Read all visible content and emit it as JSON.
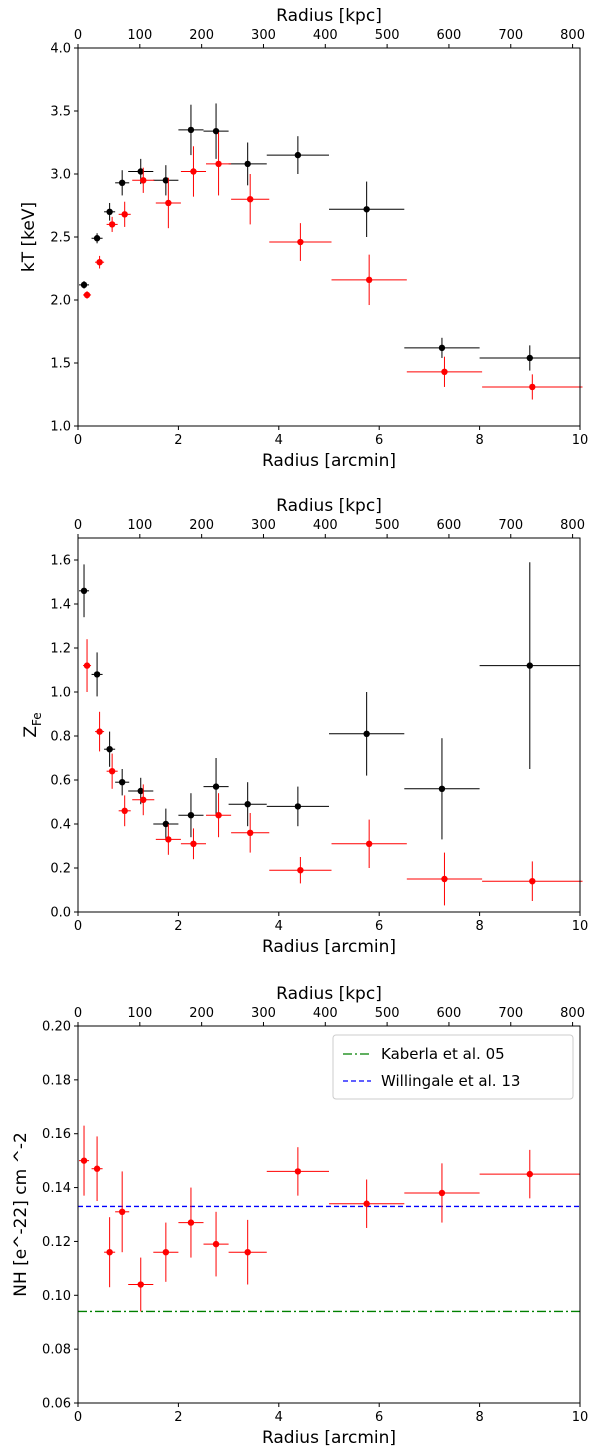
{
  "chart_data": [
    {
      "type": "scatter",
      "xlabel": "Radius [arcmin]",
      "x2label": "Radius [kpc]",
      "ylabel": "kT [keV]",
      "xlim": [
        0,
        10
      ],
      "x2lim": [
        0,
        812
      ],
      "ylim": [
        1.0,
        4.0
      ],
      "xticks": [
        0,
        2,
        4,
        6,
        8,
        10
      ],
      "x2ticks": [
        0,
        100,
        200,
        300,
        400,
        500,
        600,
        700,
        800
      ],
      "yticks": [
        1.0,
        1.5,
        2.0,
        2.5,
        3.0,
        3.5,
        4.0
      ],
      "ytick_decimals": 1,
      "grid": false,
      "series": [
        {
          "color": "#000000",
          "points": [
            {
              "x": 0.12,
              "xerr": 0.1,
              "y": 2.12,
              "yerr": 0.03
            },
            {
              "x": 0.38,
              "xerr": 0.11,
              "y": 2.49,
              "yerr": 0.04
            },
            {
              "x": 0.63,
              "xerr": 0.11,
              "y": 2.7,
              "yerr": 0.07
            },
            {
              "x": 0.88,
              "xerr": 0.14,
              "y": 2.93,
              "yerr": 0.1
            },
            {
              "x": 1.25,
              "xerr": 0.25,
              "y": 3.02,
              "yerr": 0.1
            },
            {
              "x": 1.75,
              "xerr": 0.25,
              "y": 2.95,
              "yerr": 0.12
            },
            {
              "x": 2.25,
              "xerr": 0.25,
              "y": 3.35,
              "yerr": 0.2
            },
            {
              "x": 2.75,
              "xerr": 0.25,
              "y": 3.34,
              "yerr": 0.22
            },
            {
              "x": 3.38,
              "xerr": 0.38,
              "y": 3.08,
              "yerr": 0.17
            },
            {
              "x": 4.38,
              "xerr": 0.62,
              "y": 3.15,
              "yerr": 0.15
            },
            {
              "x": 5.75,
              "xerr": 0.75,
              "y": 2.72,
              "yerr": 0.22
            },
            {
              "x": 7.25,
              "xerr": 0.75,
              "y": 1.62,
              "yerr": 0.08
            },
            {
              "x": 9.0,
              "xerr": 1.0,
              "y": 1.54,
              "yerr": 0.1
            }
          ]
        },
        {
          "color": "#ff0000",
          "points": [
            {
              "x": 0.18,
              "xerr": 0.08,
              "y": 2.04,
              "yerr": 0.03
            },
            {
              "x": 0.43,
              "xerr": 0.09,
              "y": 2.3,
              "yerr": 0.05
            },
            {
              "x": 0.68,
              "xerr": 0.11,
              "y": 2.6,
              "yerr": 0.06
            },
            {
              "x": 0.93,
              "xerr": 0.12,
              "y": 2.68,
              "yerr": 0.1
            },
            {
              "x": 1.3,
              "xerr": 0.22,
              "y": 2.95,
              "yerr": 0.1
            },
            {
              "x": 1.8,
              "xerr": 0.25,
              "y": 2.77,
              "yerr": 0.2
            },
            {
              "x": 2.3,
              "xerr": 0.25,
              "y": 3.02,
              "yerr": 0.2
            },
            {
              "x": 2.8,
              "xerr": 0.25,
              "y": 3.08,
              "yerr": 0.25
            },
            {
              "x": 3.43,
              "xerr": 0.38,
              "y": 2.8,
              "yerr": 0.2
            },
            {
              "x": 4.43,
              "xerr": 0.62,
              "y": 2.46,
              "yerr": 0.15
            },
            {
              "x": 5.8,
              "xerr": 0.75,
              "y": 2.16,
              "yerr": 0.2
            },
            {
              "x": 7.3,
              "xerr": 0.75,
              "y": 1.43,
              "yerr": 0.12
            },
            {
              "x": 9.05,
              "xerr": 1.0,
              "y": 1.31,
              "yerr": 0.1
            }
          ]
        }
      ]
    },
    {
      "type": "scatter",
      "xlabel": "Radius [arcmin]",
      "x2label": "Radius [kpc]",
      "ylabel": "Z_Fe",
      "ylabel_main": "Z",
      "ylabel_sub": "Fe",
      "xlim": [
        0,
        10
      ],
      "x2lim": [
        0,
        812
      ],
      "ylim": [
        0.0,
        1.7
      ],
      "xticks": [
        0,
        2,
        4,
        6,
        8,
        10
      ],
      "x2ticks": [
        0,
        100,
        200,
        300,
        400,
        500,
        600,
        700,
        800
      ],
      "yticks": [
        0.0,
        0.2,
        0.4,
        0.6,
        0.8,
        1.0,
        1.2,
        1.4,
        1.6
      ],
      "ytick_decimals": 1,
      "grid": false,
      "series": [
        {
          "color": "#000000",
          "points": [
            {
              "x": 0.12,
              "xerr": 0.1,
              "y": 1.46,
              "yerr": 0.12
            },
            {
              "x": 0.38,
              "xerr": 0.11,
              "y": 1.08,
              "yerr": 0.1
            },
            {
              "x": 0.63,
              "xerr": 0.11,
              "y": 0.74,
              "yerr": 0.08
            },
            {
              "x": 0.88,
              "xerr": 0.14,
              "y": 0.59,
              "yerr": 0.06
            },
            {
              "x": 1.25,
              "xerr": 0.25,
              "y": 0.55,
              "yerr": 0.06
            },
            {
              "x": 1.75,
              "xerr": 0.25,
              "y": 0.4,
              "yerr": 0.07
            },
            {
              "x": 2.25,
              "xerr": 0.25,
              "y": 0.44,
              "yerr": 0.1
            },
            {
              "x": 2.75,
              "xerr": 0.25,
              "y": 0.57,
              "yerr": 0.13
            },
            {
              "x": 3.38,
              "xerr": 0.38,
              "y": 0.49,
              "yerr": 0.1
            },
            {
              "x": 4.38,
              "xerr": 0.62,
              "y": 0.48,
              "yerr": 0.09
            },
            {
              "x": 5.75,
              "xerr": 0.75,
              "y": 0.81,
              "yerr": 0.19
            },
            {
              "x": 7.25,
              "xerr": 0.75,
              "y": 0.56,
              "yerr": 0.23
            },
            {
              "x": 9.0,
              "xerr": 1.0,
              "y": 1.12,
              "yerr": 0.47
            }
          ]
        },
        {
          "color": "#ff0000",
          "points": [
            {
              "x": 0.18,
              "xerr": 0.08,
              "y": 1.12,
              "yerr": 0.12
            },
            {
              "x": 0.43,
              "xerr": 0.09,
              "y": 0.82,
              "yerr": 0.09
            },
            {
              "x": 0.68,
              "xerr": 0.11,
              "y": 0.64,
              "yerr": 0.08
            },
            {
              "x": 0.93,
              "xerr": 0.12,
              "y": 0.46,
              "yerr": 0.07
            },
            {
              "x": 1.3,
              "xerr": 0.22,
              "y": 0.51,
              "yerr": 0.07
            },
            {
              "x": 1.8,
              "xerr": 0.25,
              "y": 0.33,
              "yerr": 0.07
            },
            {
              "x": 2.3,
              "xerr": 0.25,
              "y": 0.31,
              "yerr": 0.07
            },
            {
              "x": 2.8,
              "xerr": 0.25,
              "y": 0.44,
              "yerr": 0.1
            },
            {
              "x": 3.43,
              "xerr": 0.38,
              "y": 0.36,
              "yerr": 0.09
            },
            {
              "x": 4.43,
              "xerr": 0.62,
              "y": 0.19,
              "yerr": 0.06
            },
            {
              "x": 5.8,
              "xerr": 0.75,
              "y": 0.31,
              "yerr": 0.11
            },
            {
              "x": 7.3,
              "xerr": 0.75,
              "y": 0.15,
              "yerr": 0.12
            },
            {
              "x": 9.05,
              "xerr": 1.0,
              "y": 0.14,
              "yerr": 0.09
            }
          ]
        }
      ]
    },
    {
      "type": "scatter",
      "xlabel": "Radius [arcmin]",
      "x2label": "Radius [kpc]",
      "ylabel": "NH [e^-22] cm ^-2",
      "xlim": [
        0,
        10
      ],
      "x2lim": [
        0,
        812
      ],
      "ylim": [
        0.06,
        0.2
      ],
      "xticks": [
        0,
        2,
        4,
        6,
        8,
        10
      ],
      "x2ticks": [
        0,
        100,
        200,
        300,
        400,
        500,
        600,
        700,
        800
      ],
      "yticks": [
        0.06,
        0.08,
        0.1,
        0.12,
        0.14,
        0.16,
        0.18,
        0.2
      ],
      "ytick_decimals": 2,
      "grid": false,
      "legend_position": "top-right",
      "hlines": [
        {
          "name": "Kaberla et al. 05",
          "y": 0.094,
          "color": "#008000",
          "style": "dashdot"
        },
        {
          "name": "Willingale et al. 13",
          "y": 0.133,
          "color": "#0000ff",
          "style": "dashed"
        }
      ],
      "series": [
        {
          "color": "#ff0000",
          "points": [
            {
              "x": 0.12,
              "xerr": 0.1,
              "y": 0.15,
              "yerr": 0.013
            },
            {
              "x": 0.38,
              "xerr": 0.11,
              "y": 0.147,
              "yerr": 0.012
            },
            {
              "x": 0.63,
              "xerr": 0.11,
              "y": 0.116,
              "yerr": 0.013
            },
            {
              "x": 0.88,
              "xerr": 0.14,
              "y": 0.131,
              "yerr": 0.015
            },
            {
              "x": 1.25,
              "xerr": 0.25,
              "y": 0.104,
              "yerr": 0.01
            },
            {
              "x": 1.75,
              "xerr": 0.25,
              "y": 0.116,
              "yerr": 0.011
            },
            {
              "x": 2.25,
              "xerr": 0.25,
              "y": 0.127,
              "yerr": 0.013
            },
            {
              "x": 2.75,
              "xerr": 0.25,
              "y": 0.119,
              "yerr": 0.012
            },
            {
              "x": 3.38,
              "xerr": 0.38,
              "y": 0.116,
              "yerr": 0.012
            },
            {
              "x": 4.38,
              "xerr": 0.62,
              "y": 0.146,
              "yerr": 0.009
            },
            {
              "x": 5.75,
              "xerr": 0.75,
              "y": 0.134,
              "yerr": 0.009
            },
            {
              "x": 7.25,
              "xerr": 0.75,
              "y": 0.138,
              "yerr": 0.011
            },
            {
              "x": 9.0,
              "xerr": 1.0,
              "y": 0.145,
              "yerr": 0.009
            }
          ]
        }
      ]
    }
  ]
}
